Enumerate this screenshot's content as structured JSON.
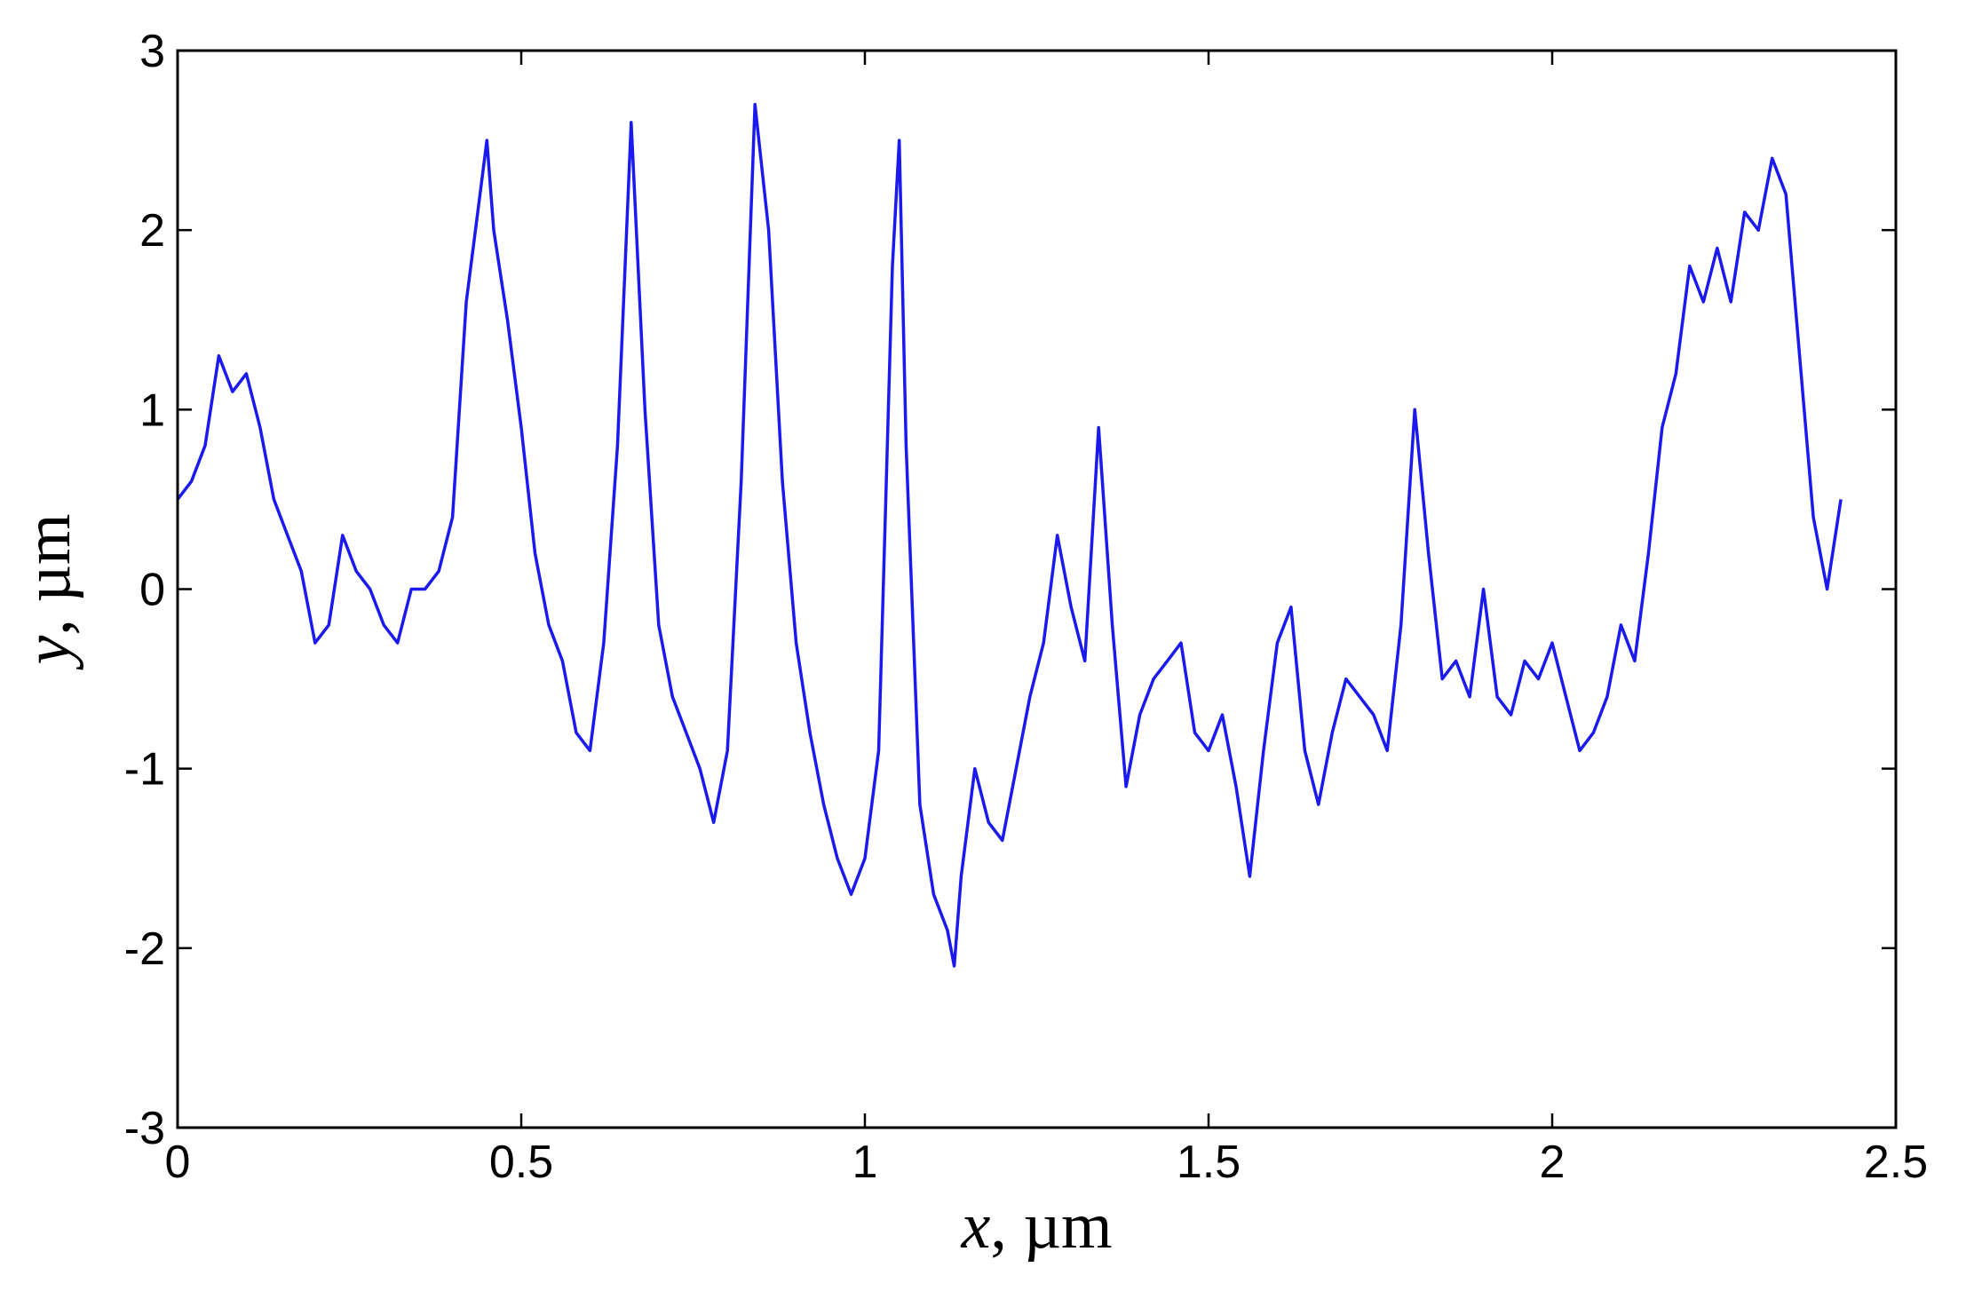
{
  "chart_data": {
    "type": "line",
    "title": "",
    "xlabel": {
      "var": "x",
      "unit": ", µm"
    },
    "ylabel": {
      "var": "y",
      "unit": ", µm"
    },
    "xlim": [
      0,
      2.5
    ],
    "ylim": [
      -3,
      3
    ],
    "xticks": [
      0,
      0.5,
      1,
      1.5,
      2,
      2.5
    ],
    "xtick_labels": [
      "0",
      "0.5",
      "1",
      "1.5",
      "2",
      "2.5"
    ],
    "yticks": [
      -3,
      -2,
      -1,
      0,
      1,
      2,
      3
    ],
    "ytick_labels": [
      "-3",
      "-2",
      "-1",
      "0",
      "1",
      "2",
      "3"
    ],
    "grid": false,
    "legend": "none",
    "line_color": "#1a1aee",
    "series": [
      {
        "x": [
          0,
          0.02,
          0.04,
          0.06,
          0.08,
          0.1,
          0.12,
          0.14,
          0.16,
          0.18,
          0.2,
          0.22,
          0.24,
          0.26,
          0.28,
          0.3,
          0.32,
          0.34,
          0.36,
          0.38,
          0.4,
          0.42,
          0.44,
          0.45,
          0.46,
          0.48,
          0.5,
          0.52,
          0.54,
          0.56,
          0.58,
          0.6,
          0.62,
          0.64,
          0.66,
          0.68,
          0.7,
          0.72,
          0.74,
          0.76,
          0.78,
          0.8,
          0.82,
          0.84,
          0.86,
          0.88,
          0.9,
          0.92,
          0.94,
          0.96,
          0.98,
          1.0,
          1.02,
          1.04,
          1.05,
          1.06,
          1.08,
          1.1,
          1.12,
          1.13,
          1.14,
          1.16,
          1.18,
          1.2,
          1.22,
          1.24,
          1.26,
          1.28,
          1.3,
          1.32,
          1.34,
          1.36,
          1.38,
          1.4,
          1.42,
          1.44,
          1.46,
          1.48,
          1.5,
          1.52,
          1.54,
          1.56,
          1.58,
          1.6,
          1.62,
          1.64,
          1.66,
          1.68,
          1.7,
          1.72,
          1.74,
          1.76,
          1.78,
          1.8,
          1.82,
          1.84,
          1.86,
          1.88,
          1.9,
          1.92,
          1.94,
          1.96,
          1.98,
          2.0,
          2.02,
          2.04,
          2.06,
          2.08,
          2.1,
          2.12,
          2.14,
          2.16,
          2.18,
          2.2,
          2.22,
          2.24,
          2.26,
          2.28,
          2.3,
          2.32,
          2.34,
          2.36,
          2.38,
          2.4,
          2.42
        ],
        "y": [
          0.5,
          0.6,
          0.8,
          1.3,
          1.1,
          1.2,
          0.9,
          0.5,
          0.3,
          0.1,
          -0.3,
          -0.2,
          0.3,
          0.1,
          0.0,
          -0.2,
          -0.3,
          0.0,
          0.0,
          0.1,
          0.4,
          1.6,
          2.2,
          2.5,
          2.0,
          1.5,
          0.9,
          0.2,
          -0.2,
          -0.4,
          -0.8,
          -0.9,
          -0.3,
          0.8,
          2.6,
          1.0,
          -0.2,
          -0.6,
          -0.8,
          -1.0,
          -1.3,
          -0.9,
          0.6,
          2.7,
          2.0,
          0.6,
          -0.3,
          -0.8,
          -1.2,
          -1.5,
          -1.7,
          -1.5,
          -0.9,
          1.8,
          2.5,
          0.8,
          -1.2,
          -1.7,
          -1.9,
          -2.1,
          -1.6,
          -1.0,
          -1.3,
          -1.4,
          -1.0,
          -0.6,
          -0.3,
          0.3,
          -0.1,
          -0.4,
          0.9,
          -0.2,
          -1.1,
          -0.7,
          -0.5,
          -0.4,
          -0.3,
          -0.8,
          -0.9,
          -0.7,
          -1.1,
          -1.6,
          -0.9,
          -0.3,
          -0.1,
          -0.9,
          -1.2,
          -0.8,
          -0.5,
          -0.6,
          -0.7,
          -0.9,
          -0.2,
          1.0,
          0.2,
          -0.5,
          -0.4,
          -0.6,
          0.0,
          -0.6,
          -0.7,
          -0.4,
          -0.5,
          -0.3,
          -0.6,
          -0.9,
          -0.8,
          -0.6,
          -0.2,
          -0.4,
          0.2,
          0.9,
          1.2,
          1.8,
          1.6,
          1.9,
          1.6,
          2.1,
          2.0,
          2.4,
          2.2,
          1.3,
          0.4,
          0.0,
          0.5
        ]
      }
    ]
  }
}
